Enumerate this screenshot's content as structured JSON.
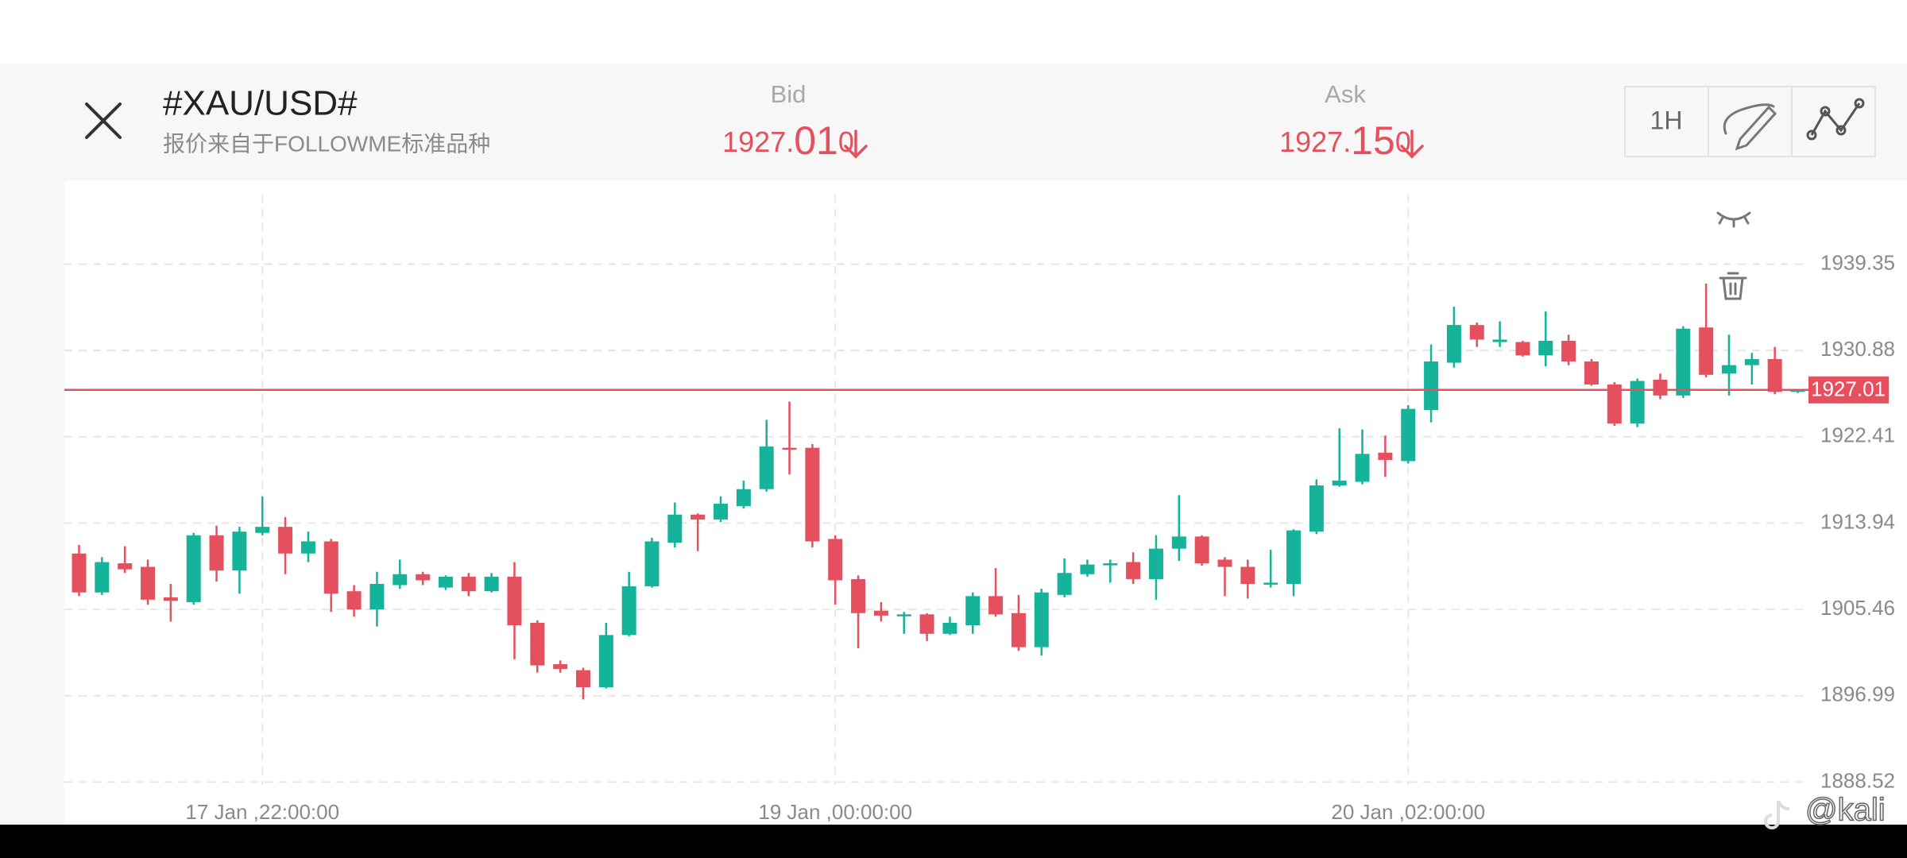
{
  "header": {
    "title": "#XAU/USD#",
    "subtitle": "报价来自于FOLLOWME标准品种",
    "bid": {
      "label": "Bid",
      "price_head": "1927.",
      "price_big": "01",
      "price_tail": "0"
    },
    "ask": {
      "label": "Ask",
      "price_head": "1927.",
      "price_big": "15",
      "price_tail": "0"
    },
    "timeframe": "1H"
  },
  "watermark": "@kali",
  "chart_data": {
    "type": "candlestick",
    "up_color": "#14b39a",
    "down_color": "#e5505e",
    "last_price": 1927.01,
    "last_price_color": "#e5505e",
    "grid": true,
    "ylim": [
      1884.34,
      1947.58
    ],
    "yticks": [
      1888.52,
      1896.99,
      1905.46,
      1913.94,
      1922.41,
      1930.88,
      1939.35
    ],
    "categories": [
      null,
      null,
      null,
      null,
      null,
      null,
      null,
      null,
      "17 Jan ,22:00:00",
      null,
      null,
      null,
      null,
      null,
      null,
      null,
      null,
      null,
      null,
      null,
      null,
      null,
      null,
      null,
      null,
      null,
      null,
      null,
      null,
      null,
      null,
      null,
      null,
      "19 Jan ,00:00:00",
      null,
      null,
      null,
      null,
      null,
      null,
      null,
      null,
      null,
      null,
      null,
      null,
      null,
      null,
      null,
      null,
      null,
      null,
      null,
      null,
      null,
      null,
      null,
      null,
      "20 Jan ,02:00:00",
      null,
      null,
      null,
      null,
      null,
      null,
      null,
      null,
      null,
      null,
      null,
      null,
      null,
      null,
      null,
      null,
      null
    ],
    "open": [
      1910.95,
      1907.13,
      1909.99,
      1909.64,
      1906.65,
      1906.18,
      1912.74,
      1909.28,
      1912.98,
      1913.57,
      1910.95,
      1912.14,
      1907.25,
      1905.46,
      1907.85,
      1908.92,
      1907.61,
      1908.68,
      1907.25,
      1908.68,
      1904.15,
      1900.09,
      1899.5,
      1897.83,
      1902.95,
      1907.73,
      1912.02,
      1914.77,
      1914.29,
      1915.6,
      1917.27,
      1921.33,
      1921.33,
      1912.38,
      1908.44,
      1905.34,
      1904.86,
      1904.98,
      1903.07,
      1903.91,
      1906.77,
      1905.1,
      1901.76,
      1906.89,
      1908.92,
      1909.87,
      1910.11,
      1908.44,
      1911.43,
      1912.62,
      1910.35,
      1909.64,
      1907.97,
      1907.97,
      1913.1,
      1917.63,
      1917.99,
      1920.85,
      1920.02,
      1925.03,
      1929.68,
      1933.38,
      1931.71,
      1931.71,
      1930.4,
      1931.83,
      1929.8,
      1927.54,
      1923.72,
      1928.01,
      1926.46,
      1933.14,
      1928.61,
      1929.44,
      1930.04,
      1926.82
    ],
    "high": [
      1911.79,
      1910.6,
      1911.67,
      1910.35,
      1907.97,
      1912.98,
      1913.69,
      1913.57,
      1916.56,
      1914.53,
      1913.1,
      1912.38,
      1907.85,
      1909.16,
      1910.35,
      1909.16,
      1908.8,
      1909.04,
      1909.04,
      1910.11,
      1904.39,
      1900.45,
      1899.74,
      1904.15,
      1909.16,
      1912.5,
      1915.96,
      1914.89,
      1916.56,
      1918.11,
      1924.07,
      1925.86,
      1921.69,
      1912.74,
      1908.8,
      1906.18,
      1905.22,
      1905.1,
      1904.75,
      1907.13,
      1909.52,
      1906.89,
      1907.49,
      1910.47,
      1910.35,
      1910.35,
      1911.07,
      1912.74,
      1916.68,
      1912.74,
      1910.59,
      1910.35,
      1911.31,
      1913.33,
      1918.23,
      1923.24,
      1923.12,
      1922.52,
      1925.51,
      1931.47,
      1935.17,
      1933.62,
      1933.74,
      1931.83,
      1934.7,
      1932.43,
      1930.04,
      1927.77,
      1928.13,
      1928.61,
      1933.26,
      1937.44,
      1932.43,
      1930.64,
      1931.23,
      1927.1
    ],
    "low": [
      1906.77,
      1906.89,
      1909.04,
      1905.94,
      1904.27,
      1905.94,
      1908.21,
      1907.01,
      1912.74,
      1908.92,
      1910.11,
      1905.22,
      1904.75,
      1903.79,
      1907.49,
      1907.85,
      1907.37,
      1906.77,
      1907.13,
      1900.57,
      1899.26,
      1899.26,
      1896.63,
      1897.71,
      1902.83,
      1907.61,
      1911.55,
      1911.19,
      1914.05,
      1915.36,
      1917.03,
      1918.71,
      1911.55,
      1905.94,
      1901.64,
      1904.27,
      1903.07,
      1902.36,
      1902.95,
      1903.07,
      1904.75,
      1901.4,
      1900.93,
      1906.65,
      1908.68,
      1908.09,
      1907.97,
      1906.42,
      1910.23,
      1909.75,
      1906.77,
      1906.54,
      1907.61,
      1906.77,
      1912.86,
      1917.51,
      1917.75,
      1918.47,
      1919.78,
      1923.83,
      1929.2,
      1931.23,
      1931.23,
      1930.28,
      1929.32,
      1929.44,
      1927.42,
      1923.48,
      1923.36,
      1926.1,
      1926.22,
      1928.25,
      1926.46,
      1927.54,
      1926.58,
      1926.7
    ],
    "close": [
      1907.13,
      1910.11,
      1909.4,
      1906.42,
      1906.3,
      1912.74,
      1909.28,
      1913.1,
      1913.57,
      1910.95,
      1912.14,
      1907.01,
      1905.46,
      1907.97,
      1908.92,
      1908.32,
      1908.68,
      1907.25,
      1908.68,
      1903.91,
      1899.97,
      1899.61,
      1897.83,
      1902.95,
      1907.73,
      1912.14,
      1914.77,
      1914.29,
      1915.84,
      1917.27,
      1921.45,
      1921.21,
      1912.14,
      1908.32,
      1905.1,
      1904.86,
      1904.98,
      1903.07,
      1904.15,
      1906.77,
      1904.98,
      1901.76,
      1907.13,
      1909.04,
      1909.87,
      1909.99,
      1908.44,
      1911.43,
      1912.62,
      1909.99,
      1909.64,
      1907.97,
      1908.09,
      1913.22,
      1917.63,
      1918.11,
      1920.73,
      1920.14,
      1925.15,
      1929.8,
      1933.38,
      1931.95,
      1931.95,
      1930.4,
      1931.83,
      1929.8,
      1927.54,
      1923.72,
      1927.89,
      1926.46,
      1933.02,
      1928.49,
      1929.44,
      1930.04,
      1926.82,
      1927.01
    ]
  }
}
